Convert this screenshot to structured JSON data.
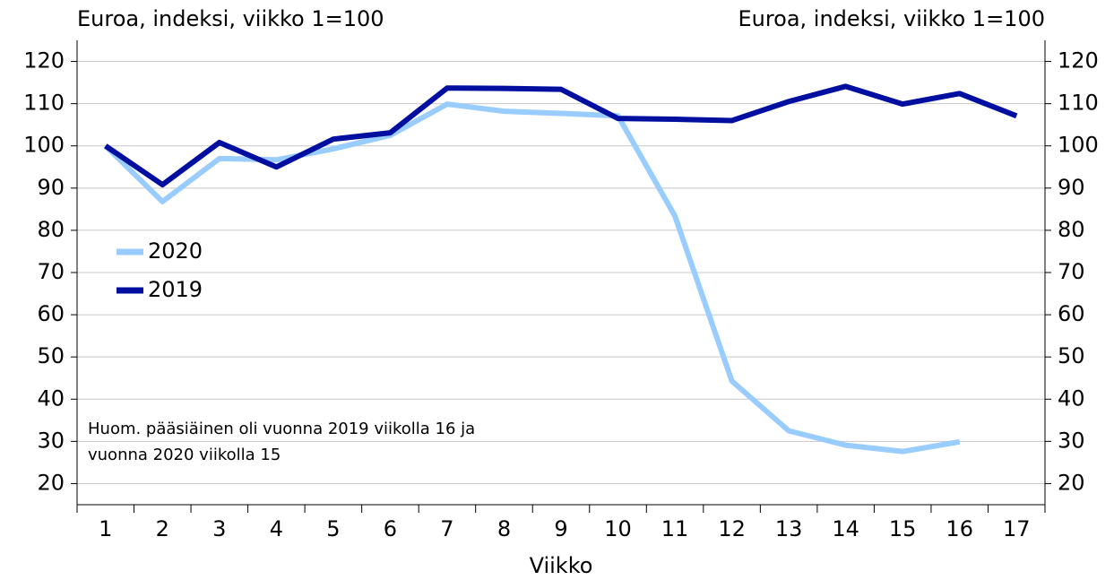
{
  "chart_data": {
    "type": "line",
    "y_label": "Euroa, indeksi, viikko 1=100",
    "y2_label": "Euroa, indeksi, viikko 1=100",
    "x_label": "Viikko",
    "annotation": [
      "Huom. pääsiäinen oli vuonna 2019 viikolla 16 ja",
      "vuonna 2020 viikolla 15"
    ],
    "categories": [
      "1",
      "2",
      "3",
      "4",
      "5",
      "6",
      "7",
      "8",
      "9",
      "10",
      "11",
      "12",
      "13",
      "14",
      "15",
      "16",
      "17"
    ],
    "series": [
      {
        "name": "2020",
        "color": "#99ccff",
        "values": [
          100,
          86.8,
          97,
          96.7,
          99.3,
          102.5,
          109.9,
          108.2,
          107.7,
          107.1,
          83.4,
          44.3,
          32.5,
          29.1,
          27.6,
          29.9,
          null
        ]
      },
      {
        "name": "2019",
        "color": "#000f9f",
        "values": [
          100,
          90.8,
          100.8,
          95,
          101.6,
          103.1,
          113.7,
          113.6,
          113.4,
          106.5,
          106.3,
          106,
          110.5,
          114.1,
          109.9,
          112.4,
          107.1
        ]
      }
    ],
    "ylim": [
      15,
      125
    ],
    "yticks": [
      20,
      30,
      40,
      50,
      60,
      70,
      80,
      90,
      100,
      110,
      120
    ],
    "y2lim": [
      15,
      125
    ],
    "y2ticks": [
      20,
      30,
      40,
      50,
      60,
      70,
      80,
      90,
      100,
      110,
      120
    ],
    "grid": true
  }
}
